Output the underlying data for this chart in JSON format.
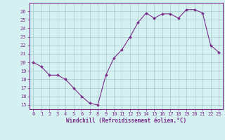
{
  "x_data": [
    0,
    1,
    2,
    3,
    4,
    5,
    6,
    7,
    8,
    9,
    10,
    11,
    12,
    13,
    14,
    15,
    16,
    17,
    18,
    19,
    20,
    21,
    22,
    23
  ],
  "y_data": [
    20.0,
    19.5,
    18.5,
    18.5,
    18.0,
    17.0,
    16.0,
    15.2,
    15.0,
    18.5,
    20.5,
    21.5,
    23.0,
    24.7,
    25.8,
    25.2,
    25.7,
    25.7,
    25.2,
    26.2,
    26.2,
    25.8,
    22.0,
    21.2
  ],
  "line_color": "#7b2d8b",
  "marker_color": "#7b2d8b",
  "bg_color": "#d4f0f0",
  "grid_color": "#a8cccc",
  "xlabel": "Windchill (Refroidissement éolien,°C)",
  "ylim_min": 14.5,
  "ylim_max": 27.0,
  "xlim_min": -0.5,
  "xlim_max": 23.5,
  "yticks": [
    15,
    16,
    17,
    18,
    19,
    20,
    21,
    22,
    23,
    24,
    25,
    26
  ],
  "xticks": [
    0,
    1,
    2,
    3,
    4,
    5,
    6,
    7,
    8,
    9,
    10,
    11,
    12,
    13,
    14,
    15,
    16,
    17,
    18,
    19,
    20,
    21,
    22,
    23
  ],
  "xlabel_color": "#7b2d8b",
  "tick_color": "#7b2d8b",
  "axis_color": "#7b2d8b",
  "tick_fontsize": 5,
  "xlabel_fontsize": 5.5
}
